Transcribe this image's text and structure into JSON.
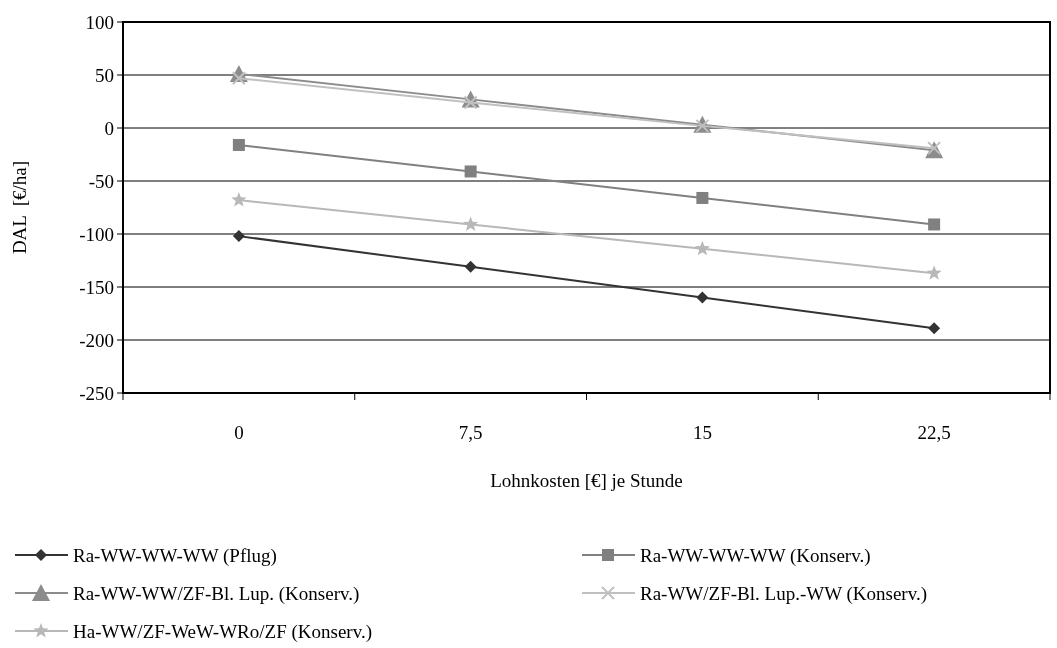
{
  "chart_data": {
    "type": "line",
    "xlabel": "Lohnkosten [€] je Stunde",
    "ylabel": "DAL  [€/ha]",
    "categories": [
      "0",
      "7,5",
      "15",
      "22,5"
    ],
    "ylim": [
      -250,
      100
    ],
    "yticks": [
      -250,
      -200,
      -150,
      -100,
      -50,
      0,
      50,
      100
    ],
    "grid": "y",
    "legend": "bottom",
    "line_style": "solid",
    "series": [
      {
        "name": "Ra-WW-WW-WW (Pflug)",
        "color": "#333333",
        "marker": "diamond",
        "values": [
          -102,
          -131,
          -160,
          -189
        ]
      },
      {
        "name": "Ra-WW-WW-WW (Konserv.)",
        "color": "#808080",
        "marker": "square",
        "values": [
          -16,
          -41,
          -66,
          -91
        ]
      },
      {
        "name": "Ra-WW-WW/ZF-Bl. Lup. (Konserv.)",
        "color": "#8c8c8c",
        "marker": "triangle",
        "values": [
          51,
          27,
          3,
          -21
        ]
      },
      {
        "name": "Ra-WW/ZF-Bl. Lup.-WW (Konserv.)",
        "color": "#c0c0c0",
        "marker": "cross",
        "values": [
          47,
          24,
          2,
          -19
        ]
      },
      {
        "name": "Ha-WW/ZF-WeW-WRo/ZF (Konserv.)",
        "color": "#b8b8b8",
        "marker": "star",
        "values": [
          -68,
          -91,
          -114,
          -137
        ]
      }
    ]
  }
}
